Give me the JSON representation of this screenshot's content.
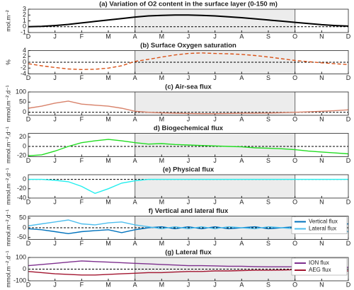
{
  "chart_data": [
    {
      "type": "line",
      "title": "(a) Variation of O2 content in the surface layer (0-150 m)",
      "ylabel": "mol.m⁻²",
      "x": [
        0,
        0.5,
        1,
        1.5,
        2,
        2.5,
        3,
        3.5,
        4,
        4.5,
        5,
        5.5,
        6,
        6.5,
        7,
        7.5,
        8,
        8.5,
        9,
        9.5,
        10,
        10.5,
        11,
        11.5,
        12
      ],
      "values": [
        0,
        0.05,
        0.2,
        0.4,
        0.65,
        0.9,
        1.15,
        1.4,
        1.65,
        1.85,
        1.95,
        2.0,
        2.0,
        1.95,
        1.85,
        1.7,
        1.55,
        1.35,
        1.15,
        0.95,
        0.75,
        0.55,
        0.35,
        0.2,
        0.1
      ],
      "color": "#000000",
      "line_style": "solid",
      "xlim": [
        0,
        12
      ],
      "ylim": [
        -1,
        3
      ],
      "yticks": [
        -1,
        0,
        1,
        2,
        3
      ],
      "xticks": [
        {
          "value": 0,
          "label": "D"
        },
        {
          "value": 1,
          "label": "J"
        },
        {
          "value": 2,
          "label": "F"
        },
        {
          "value": 3,
          "label": "M"
        },
        {
          "value": 4,
          "label": "A"
        },
        {
          "value": 5,
          "label": "M"
        },
        {
          "value": 6,
          "label": "J"
        },
        {
          "value": 7,
          "label": "J"
        },
        {
          "value": 8,
          "label": "A"
        },
        {
          "value": 9,
          "label": "S"
        },
        {
          "value": 10,
          "label": "O"
        },
        {
          "value": 11,
          "label": "N"
        },
        {
          "value": 12,
          "label": "D"
        }
      ],
      "shaded_range": [
        4,
        10
      ],
      "zero_line": true
    },
    {
      "type": "line",
      "title": "(b) Surface Oxygen saturation",
      "ylabel": "%",
      "x": [
        0,
        0.5,
        1,
        1.5,
        2,
        2.5,
        3,
        3.5,
        4,
        4.5,
        5,
        5.5,
        6,
        6.5,
        7,
        7.5,
        8,
        8.5,
        9,
        9.5,
        10,
        10.5,
        11,
        11.5,
        12
      ],
      "values": [
        -0.5,
        -1.2,
        -1.8,
        -2.3,
        -2.5,
        -2.4,
        -2,
        -1.2,
        0.3,
        1,
        1.8,
        2.5,
        3,
        3.2,
        3,
        2.9,
        2.7,
        2.3,
        1.8,
        1.2,
        0.6,
        0.2,
        -0.2,
        -0.5,
        -0.8
      ],
      "color": "#d95319",
      "line_style": "dashed",
      "xlim": [
        0,
        12
      ],
      "ylim": [
        -4,
        4
      ],
      "yticks": [
        -4,
        -2,
        0,
        2,
        4
      ],
      "xticks": [
        {
          "value": 0,
          "label": "D"
        },
        {
          "value": 1,
          "label": "J"
        },
        {
          "value": 2,
          "label": "F"
        },
        {
          "value": 3,
          "label": "M"
        },
        {
          "value": 4,
          "label": "A"
        },
        {
          "value": 5,
          "label": "M"
        },
        {
          "value": 6,
          "label": "J"
        },
        {
          "value": 7,
          "label": "J"
        },
        {
          "value": 8,
          "label": "A"
        },
        {
          "value": 9,
          "label": "S"
        },
        {
          "value": 10,
          "label": "O"
        },
        {
          "value": 11,
          "label": "N"
        },
        {
          "value": 12,
          "label": "D"
        }
      ],
      "shaded_range": [
        4,
        10
      ],
      "zero_line": true
    },
    {
      "type": "line",
      "title": "(c) Air-sea flux",
      "ylabel": "mmol.m⁻².d⁻¹",
      "x": [
        0,
        0.5,
        1,
        1.5,
        2,
        2.5,
        3,
        3.5,
        4,
        4.5,
        5,
        5.5,
        6,
        6.5,
        7,
        7.5,
        8,
        8.5,
        9,
        9.5,
        10,
        10.5,
        11,
        11.5,
        12
      ],
      "values": [
        20,
        30,
        45,
        55,
        40,
        35,
        30,
        20,
        5,
        0,
        -3,
        -5,
        -6,
        -7,
        -7,
        -6,
        -5,
        -5,
        -4,
        -2,
        0,
        2,
        5,
        8,
        12
      ],
      "color": "#d8826a",
      "line_style": "solid",
      "xlim": [
        0,
        12
      ],
      "ylim": [
        -15,
        100
      ],
      "yticks": [
        0,
        50,
        100
      ],
      "xticks": [
        {
          "value": 0,
          "label": "D"
        },
        {
          "value": 1,
          "label": "J"
        },
        {
          "value": 2,
          "label": "F"
        },
        {
          "value": 3,
          "label": "M"
        },
        {
          "value": 4,
          "label": "A"
        },
        {
          "value": 5,
          "label": "M"
        },
        {
          "value": 6,
          "label": "J"
        },
        {
          "value": 7,
          "label": "J"
        },
        {
          "value": 8,
          "label": "A"
        },
        {
          "value": 9,
          "label": "S"
        },
        {
          "value": 10,
          "label": "O"
        },
        {
          "value": 11,
          "label": "N"
        },
        {
          "value": 12,
          "label": "D"
        }
      ],
      "shaded_range": [
        4,
        10
      ],
      "zero_line": true
    },
    {
      "type": "line",
      "title": "d) Biogechemical flux",
      "ylabel": "mmol.m⁻².d⁻¹",
      "x": [
        0,
        0.5,
        1,
        1.5,
        2,
        2.5,
        3,
        3.5,
        4,
        4.5,
        5,
        5.5,
        6,
        6.5,
        7,
        7.5,
        8,
        8.5,
        9,
        9.5,
        10,
        10.5,
        11,
        11.5,
        12
      ],
      "values": [
        -20,
        -18,
        -10,
        0,
        8,
        12,
        15,
        12,
        8,
        5,
        6,
        4,
        3,
        2,
        1,
        0,
        -1,
        -3,
        -4,
        -5,
        -7,
        -10,
        -12,
        -14,
        -16
      ],
      "color": "#22dd22",
      "line_style": "solid",
      "xlim": [
        0,
        12
      ],
      "ylim": [
        -22,
        28
      ],
      "yticks": [
        -20,
        0,
        20
      ],
      "xticks": [
        {
          "value": 0,
          "label": "D"
        },
        {
          "value": 1,
          "label": "J"
        },
        {
          "value": 2,
          "label": "F"
        },
        {
          "value": 3,
          "label": "M"
        },
        {
          "value": 4,
          "label": "A"
        },
        {
          "value": 5,
          "label": "M"
        },
        {
          "value": 6,
          "label": "J"
        },
        {
          "value": 7,
          "label": "J"
        },
        {
          "value": 8,
          "label": "A"
        },
        {
          "value": 9,
          "label": "S"
        },
        {
          "value": 10,
          "label": "O"
        },
        {
          "value": 11,
          "label": "N"
        },
        {
          "value": 12,
          "label": "D"
        }
      ],
      "shaded_range": [
        4,
        10
      ],
      "zero_line": true
    },
    {
      "type": "line",
      "title": "(e) Physical flux",
      "ylabel": "mmol.m⁻².d⁻¹",
      "x": [
        0,
        0.5,
        1,
        1.5,
        2,
        2.5,
        3,
        3.5,
        4,
        4.5,
        5,
        5.5,
        6,
        6.5,
        7,
        7.5,
        8,
        8.5,
        9,
        9.5,
        10,
        10.5,
        11,
        11.5,
        12
      ],
      "values": [
        0,
        0,
        -2,
        -5,
        -15,
        -30,
        -20,
        -8,
        -3,
        0,
        0,
        0,
        0,
        0,
        0,
        0,
        0,
        0,
        0,
        0,
        0,
        0,
        0,
        0,
        0
      ],
      "color": "#22eeee",
      "line_style": "solid",
      "xlim": [
        0,
        12
      ],
      "ylim": [
        -40,
        10
      ],
      "yticks": [
        -40,
        -20,
        0
      ],
      "xticks": [
        {
          "value": 0,
          "label": "D"
        },
        {
          "value": 1,
          "label": "J"
        },
        {
          "value": 2,
          "label": "F"
        },
        {
          "value": 3,
          "label": "M"
        },
        {
          "value": 4,
          "label": "A"
        },
        {
          "value": 5,
          "label": "M"
        },
        {
          "value": 6,
          "label": "J"
        },
        {
          "value": 7,
          "label": "J"
        },
        {
          "value": 8,
          "label": "A"
        },
        {
          "value": 9,
          "label": "S"
        },
        {
          "value": 10,
          "label": "O"
        },
        {
          "value": 11,
          "label": "N"
        },
        {
          "value": 12,
          "label": "D"
        }
      ],
      "shaded_range": [
        4,
        10
      ],
      "zero_line": true
    },
    {
      "type": "line",
      "title": "f) Vertical and lateral flux",
      "ylabel": "mmol.m⁻².d⁻¹",
      "x": [
        0,
        0.5,
        1,
        1.5,
        2,
        2.5,
        3,
        3.5,
        4,
        4.5,
        5,
        5.5,
        6,
        6.5,
        7,
        7.5,
        8,
        8.5,
        9,
        9.5,
        10,
        10.5,
        11,
        11.5,
        12
      ],
      "series": [
        {
          "name": "Vertical flux",
          "color": "#0072bd",
          "values": [
            -5,
            -10,
            -20,
            -30,
            -20,
            -15,
            -10,
            -25,
            -10,
            0,
            5,
            -5,
            5,
            -5,
            5,
            -5,
            0,
            5,
            -5,
            0,
            5,
            0,
            10,
            15,
            20
          ]
        },
        {
          "name": "Lateral flux",
          "color": "#4dbeee",
          "values": [
            10,
            20,
            30,
            40,
            20,
            15,
            25,
            30,
            15,
            5,
            -5,
            5,
            -5,
            5,
            -5,
            5,
            0,
            -5,
            5,
            0,
            -5,
            0,
            -10,
            -15,
            -20
          ]
        }
      ],
      "line_style": "solid",
      "xlim": [
        0,
        12
      ],
      "ylim": [
        -60,
        60
      ],
      "yticks": [
        -50,
        0,
        50
      ],
      "xticks": [
        {
          "value": 0,
          "label": "D"
        },
        {
          "value": 1,
          "label": "J"
        },
        {
          "value": 2,
          "label": "F"
        },
        {
          "value": 3,
          "label": "M"
        },
        {
          "value": 4,
          "label": "A"
        },
        {
          "value": 5,
          "label": "M"
        },
        {
          "value": 6,
          "label": "J"
        },
        {
          "value": 7,
          "label": "J"
        },
        {
          "value": 8,
          "label": "A"
        },
        {
          "value": 9,
          "label": "S"
        },
        {
          "value": 10,
          "label": "O"
        },
        {
          "value": 11,
          "label": "N"
        },
        {
          "value": 12,
          "label": "D"
        }
      ],
      "shaded_range": [
        4,
        10
      ],
      "zero_line": true,
      "legend": "upper right"
    },
    {
      "type": "line",
      "title": "(g) Lateral flux",
      "ylabel": "mmol.m⁻².d⁻¹",
      "x": [
        0,
        0.5,
        1,
        1.5,
        2,
        2.5,
        3,
        3.5,
        4,
        4.5,
        5,
        5.5,
        6,
        6.5,
        7,
        7.5,
        8,
        8.5,
        9,
        9.5,
        10,
        10.5,
        11,
        11.5,
        12
      ],
      "series": [
        {
          "name": "ION flux",
          "color": "#7e2f8e",
          "values": [
            30,
            40,
            50,
            60,
            70,
            65,
            60,
            55,
            50,
            45,
            40,
            35,
            30,
            30,
            28,
            25,
            25,
            22,
            20,
            20,
            20,
            18,
            15,
            15,
            15
          ]
        },
        {
          "name": "AEG flux",
          "color": "#a2142f",
          "values": [
            -20,
            -30,
            -40,
            -45,
            -50,
            -50,
            -45,
            -40,
            -35,
            -30,
            -30,
            -25,
            -20,
            -20,
            -15,
            -15,
            -12,
            -10,
            -10,
            -8,
            -5,
            -8,
            -10,
            -12,
            -15
          ]
        }
      ],
      "line_style": "solid",
      "xlim": [
        0,
        12
      ],
      "ylim": [
        -100,
        100
      ],
      "yticks": [
        -100,
        0,
        100
      ],
      "xticks": [
        {
          "value": 0,
          "label": "D"
        },
        {
          "value": 1,
          "label": "J"
        },
        {
          "value": 2,
          "label": "F"
        },
        {
          "value": 3,
          "label": "M"
        },
        {
          "value": 4,
          "label": "A"
        },
        {
          "value": 5,
          "label": "M"
        },
        {
          "value": 6,
          "label": "J"
        },
        {
          "value": 7,
          "label": "J"
        },
        {
          "value": 8,
          "label": "A"
        },
        {
          "value": 9,
          "label": "S"
        },
        {
          "value": 10,
          "label": "O"
        },
        {
          "value": 11,
          "label": "N"
        },
        {
          "value": 12,
          "label": "D"
        }
      ],
      "shaded_range": [
        4,
        10
      ],
      "zero_line": true,
      "legend": "upper right"
    }
  ]
}
